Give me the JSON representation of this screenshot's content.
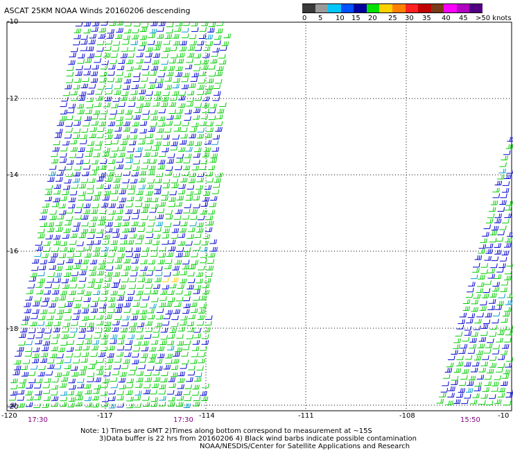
{
  "title": "ASCAT 25KM NOAA Winds 20160206 descending",
  "legend": {
    "colors": [
      "#3a3a3a",
      "#9a9a9a",
      "#00c8ff",
      "#0050ff",
      "#0000a0",
      "#00e000",
      "#ffd000",
      "#ff8000",
      "#ff2020",
      "#c00000",
      "#7a3a1a",
      "#ff00ff",
      "#b000c0",
      "#500080"
    ],
    "labels": [
      "0",
      "5",
      "10",
      "15",
      "20",
      "25",
      "30",
      "35",
      "40",
      "45",
      ">50 knots"
    ]
  },
  "map": {
    "lat_labels": [
      "-10",
      "-12",
      "-14",
      "-16",
      "-18",
      "-20"
    ],
    "lon_labels": [
      "-120",
      "-117",
      "-114",
      "-111",
      "-108",
      "-10"
    ],
    "time_labels": [
      "17:30",
      "17:30",
      "15:50"
    ],
    "barb_colors": {
      "calm": "#00cc00",
      "moderate": "#0000cc",
      "strong": "#ffcc00",
      "variable": "#0099cc"
    }
  },
  "notes": {
    "line1": "Note: 1) Times are GMT 2)Times along bottom correspond to measurement at ~15S",
    "line2": "3)Data buffer is 22 hrs from 20160206 4) Black wind barbs indicate possible contamination",
    "line3": "NOAA/NESDIS/Center for Satellite Applications and Research"
  }
}
